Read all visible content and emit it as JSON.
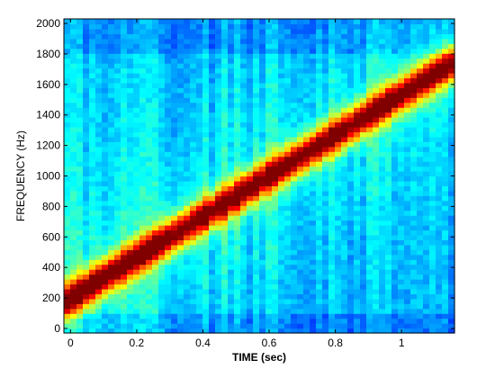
{
  "chart_data": {
    "type": "heatmap",
    "xlabel": "TIME (sec)",
    "ylabel": "FREQUENCY (Hz)",
    "xlim": [
      -0.02,
      1.16
    ],
    "ylim": [
      -30,
      2030
    ],
    "x_ticks": [
      0,
      0.2,
      0.4,
      0.6,
      0.8,
      1
    ],
    "x_tick_labels": [
      "0",
      "0.2",
      "0.4",
      "0.6",
      "0.8",
      "1"
    ],
    "y_ticks": [
      0,
      200,
      400,
      600,
      800,
      1000,
      1200,
      1400,
      1600,
      1800,
      2000
    ],
    "y_tick_labels": [
      "0",
      "200",
      "400",
      "600",
      "800",
      "1000",
      "1200",
      "1400",
      "1600",
      "1800",
      "2000"
    ],
    "colormap": "jet",
    "chirp": {
      "start_frequency": 200,
      "end_frequency": 1750,
      "start_time": 0,
      "end_time": 1.16
    },
    "grid": false,
    "legend": "none"
  }
}
